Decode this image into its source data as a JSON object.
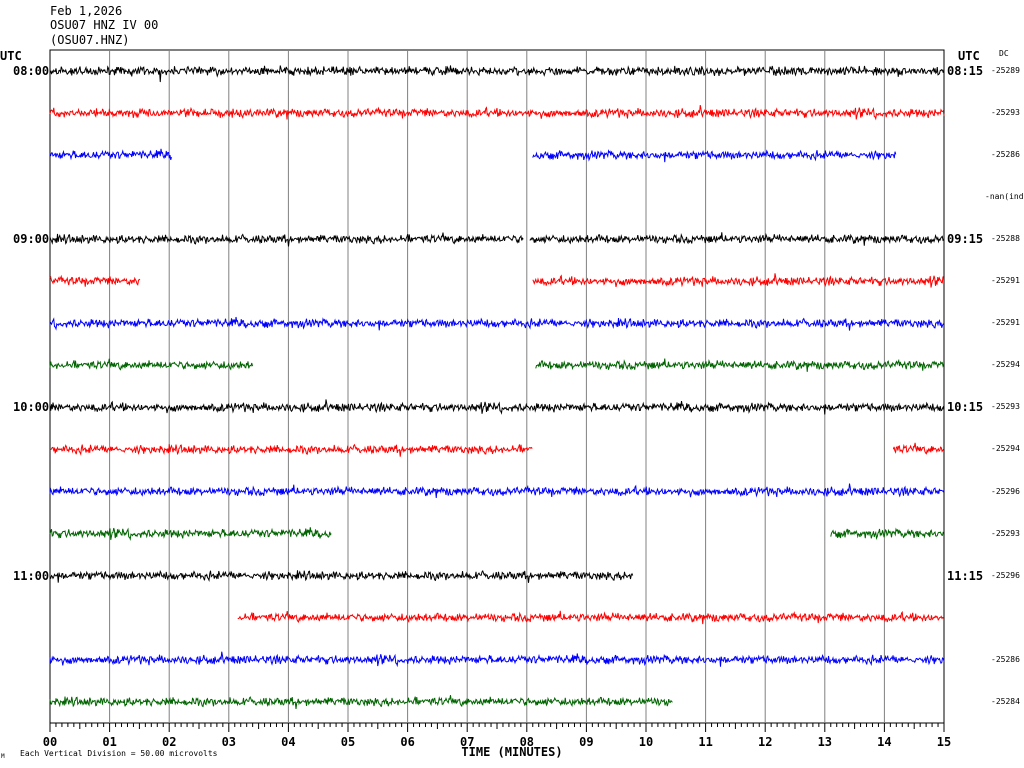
{
  "header": {
    "date": "Feb 1,2026",
    "station": "OSU07 HNZ IV 00",
    "code": "(OSU07.HNZ)"
  },
  "axis": {
    "left_unit": "UTC",
    "right_unit": "UTC",
    "dc_label": "DC",
    "xlabel": "TIME (MINUTES)",
    "ticks": [
      "00",
      "01",
      "02",
      "03",
      "04",
      "05",
      "06",
      "07",
      "08",
      "09",
      "10",
      "11",
      "12",
      "13",
      "14",
      "15"
    ]
  },
  "footer": {
    "scale": "Each Vertical Division =   50.00 microvolts"
  },
  "colors": {
    "black": "#000000",
    "red": "#ff0000",
    "blue": "#0000ff",
    "green": "#006400"
  },
  "chart_data": {
    "type": "line",
    "title": "OSU07 HNZ IV 00",
    "xlabel": "TIME (MINUTES)",
    "xlim": [
      0,
      15
    ],
    "traces": [
      {
        "row": 0,
        "left_time": "08:00",
        "right_time": "08:15",
        "color": "black",
        "dc": "-25289",
        "segments": [
          [
            0,
            15
          ]
        ]
      },
      {
        "row": 1,
        "left_time": "",
        "right_time": "",
        "color": "red",
        "dc": "-25293",
        "segments": [
          [
            0,
            15
          ]
        ]
      },
      {
        "row": 2,
        "left_time": "",
        "right_time": "",
        "color": "blue",
        "dc": "-25286",
        "segments": [
          [
            0,
            2.05
          ],
          [
            8.1,
            14.2
          ]
        ]
      },
      {
        "row": 3,
        "left_time": "",
        "right_time": "",
        "color": "green",
        "dc": "-nan(ind",
        "segments": []
      },
      {
        "row": 4,
        "left_time": "09:00",
        "right_time": "09:15",
        "color": "black",
        "dc": "-25288",
        "segments": [
          [
            0,
            7.95
          ],
          [
            8.05,
            15
          ]
        ]
      },
      {
        "row": 5,
        "left_time": "",
        "right_time": "",
        "color": "red",
        "dc": "-25291",
        "segments": [
          [
            0,
            1.52
          ],
          [
            8.1,
            15
          ]
        ]
      },
      {
        "row": 6,
        "left_time": "",
        "right_time": "",
        "color": "blue",
        "dc": "-25291",
        "segments": [
          [
            0,
            15
          ]
        ]
      },
      {
        "row": 7,
        "left_time": "",
        "right_time": "",
        "color": "green",
        "dc": "-25294",
        "segments": [
          [
            0,
            3.4
          ],
          [
            8.15,
            15
          ]
        ]
      },
      {
        "row": 8,
        "left_time": "10:00",
        "right_time": "10:15",
        "color": "black",
        "dc": "-25293",
        "segments": [
          [
            0,
            15
          ]
        ]
      },
      {
        "row": 9,
        "left_time": "",
        "right_time": "",
        "color": "red",
        "dc": "-25294",
        "segments": [
          [
            0,
            8.1
          ],
          [
            14.15,
            15
          ]
        ]
      },
      {
        "row": 10,
        "left_time": "",
        "right_time": "",
        "color": "blue",
        "dc": "-25296",
        "segments": [
          [
            0,
            15
          ]
        ]
      },
      {
        "row": 11,
        "left_time": "",
        "right_time": "",
        "color": "green",
        "dc": "-25293",
        "segments": [
          [
            0,
            4.72
          ],
          [
            13.1,
            15
          ]
        ]
      },
      {
        "row": 12,
        "left_time": "11:00",
        "right_time": "11:15",
        "color": "black",
        "dc": "-25296",
        "segments": [
          [
            0,
            9.78
          ]
        ]
      },
      {
        "row": 13,
        "left_time": "",
        "right_time": "",
        "color": "red",
        "dc": "",
        "segments": [
          [
            3.15,
            15
          ]
        ]
      },
      {
        "row": 14,
        "left_time": "",
        "right_time": "",
        "color": "blue",
        "dc": "-25286",
        "segments": [
          [
            0,
            15
          ]
        ]
      },
      {
        "row": 15,
        "left_time": "",
        "right_time": "",
        "color": "green",
        "dc": "-25284",
        "segments": [
          [
            0,
            10.45
          ]
        ]
      }
    ]
  }
}
